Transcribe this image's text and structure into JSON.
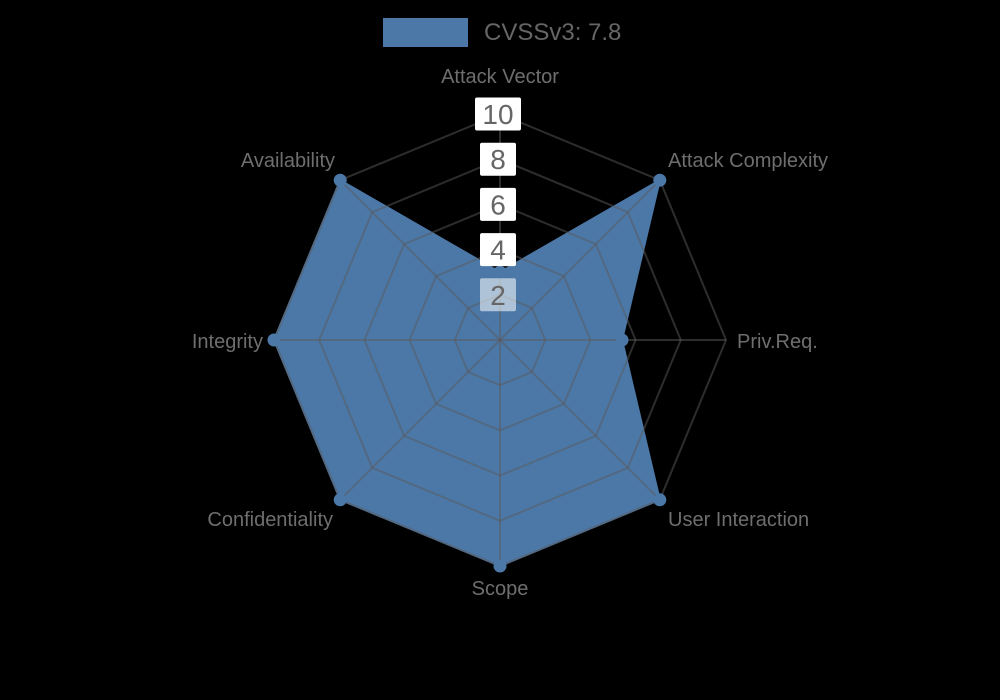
{
  "background_color": "#000000",
  "legend": {
    "label": "CVSSv3: 7.8",
    "swatch_color": "#4c78a8"
  },
  "chart_data": {
    "type": "radar",
    "title": "CVSSv3: 7.8",
    "categories": [
      "Attack Vector",
      "Attack Complexity",
      "Priv.Req.",
      "User Interaction",
      "Scope",
      "Confidentiality",
      "Integrity",
      "Availability"
    ],
    "series": [
      {
        "name": "CVSSv3: 7.8",
        "values": [
          3,
          10,
          5.4,
          10,
          10,
          10,
          10,
          10
        ],
        "color": "#4c78a8"
      }
    ],
    "axis_max": 10,
    "ring_ticks": [
      2,
      4,
      6,
      8,
      10
    ],
    "grid_shape": "polygon",
    "grid_color": "rgba(90,90,90,0.5)",
    "axis_label_color": "#6e6e6e",
    "tick_label_color": "#666666",
    "tick_box_color": "#ffffff",
    "legend_position": "top"
  }
}
